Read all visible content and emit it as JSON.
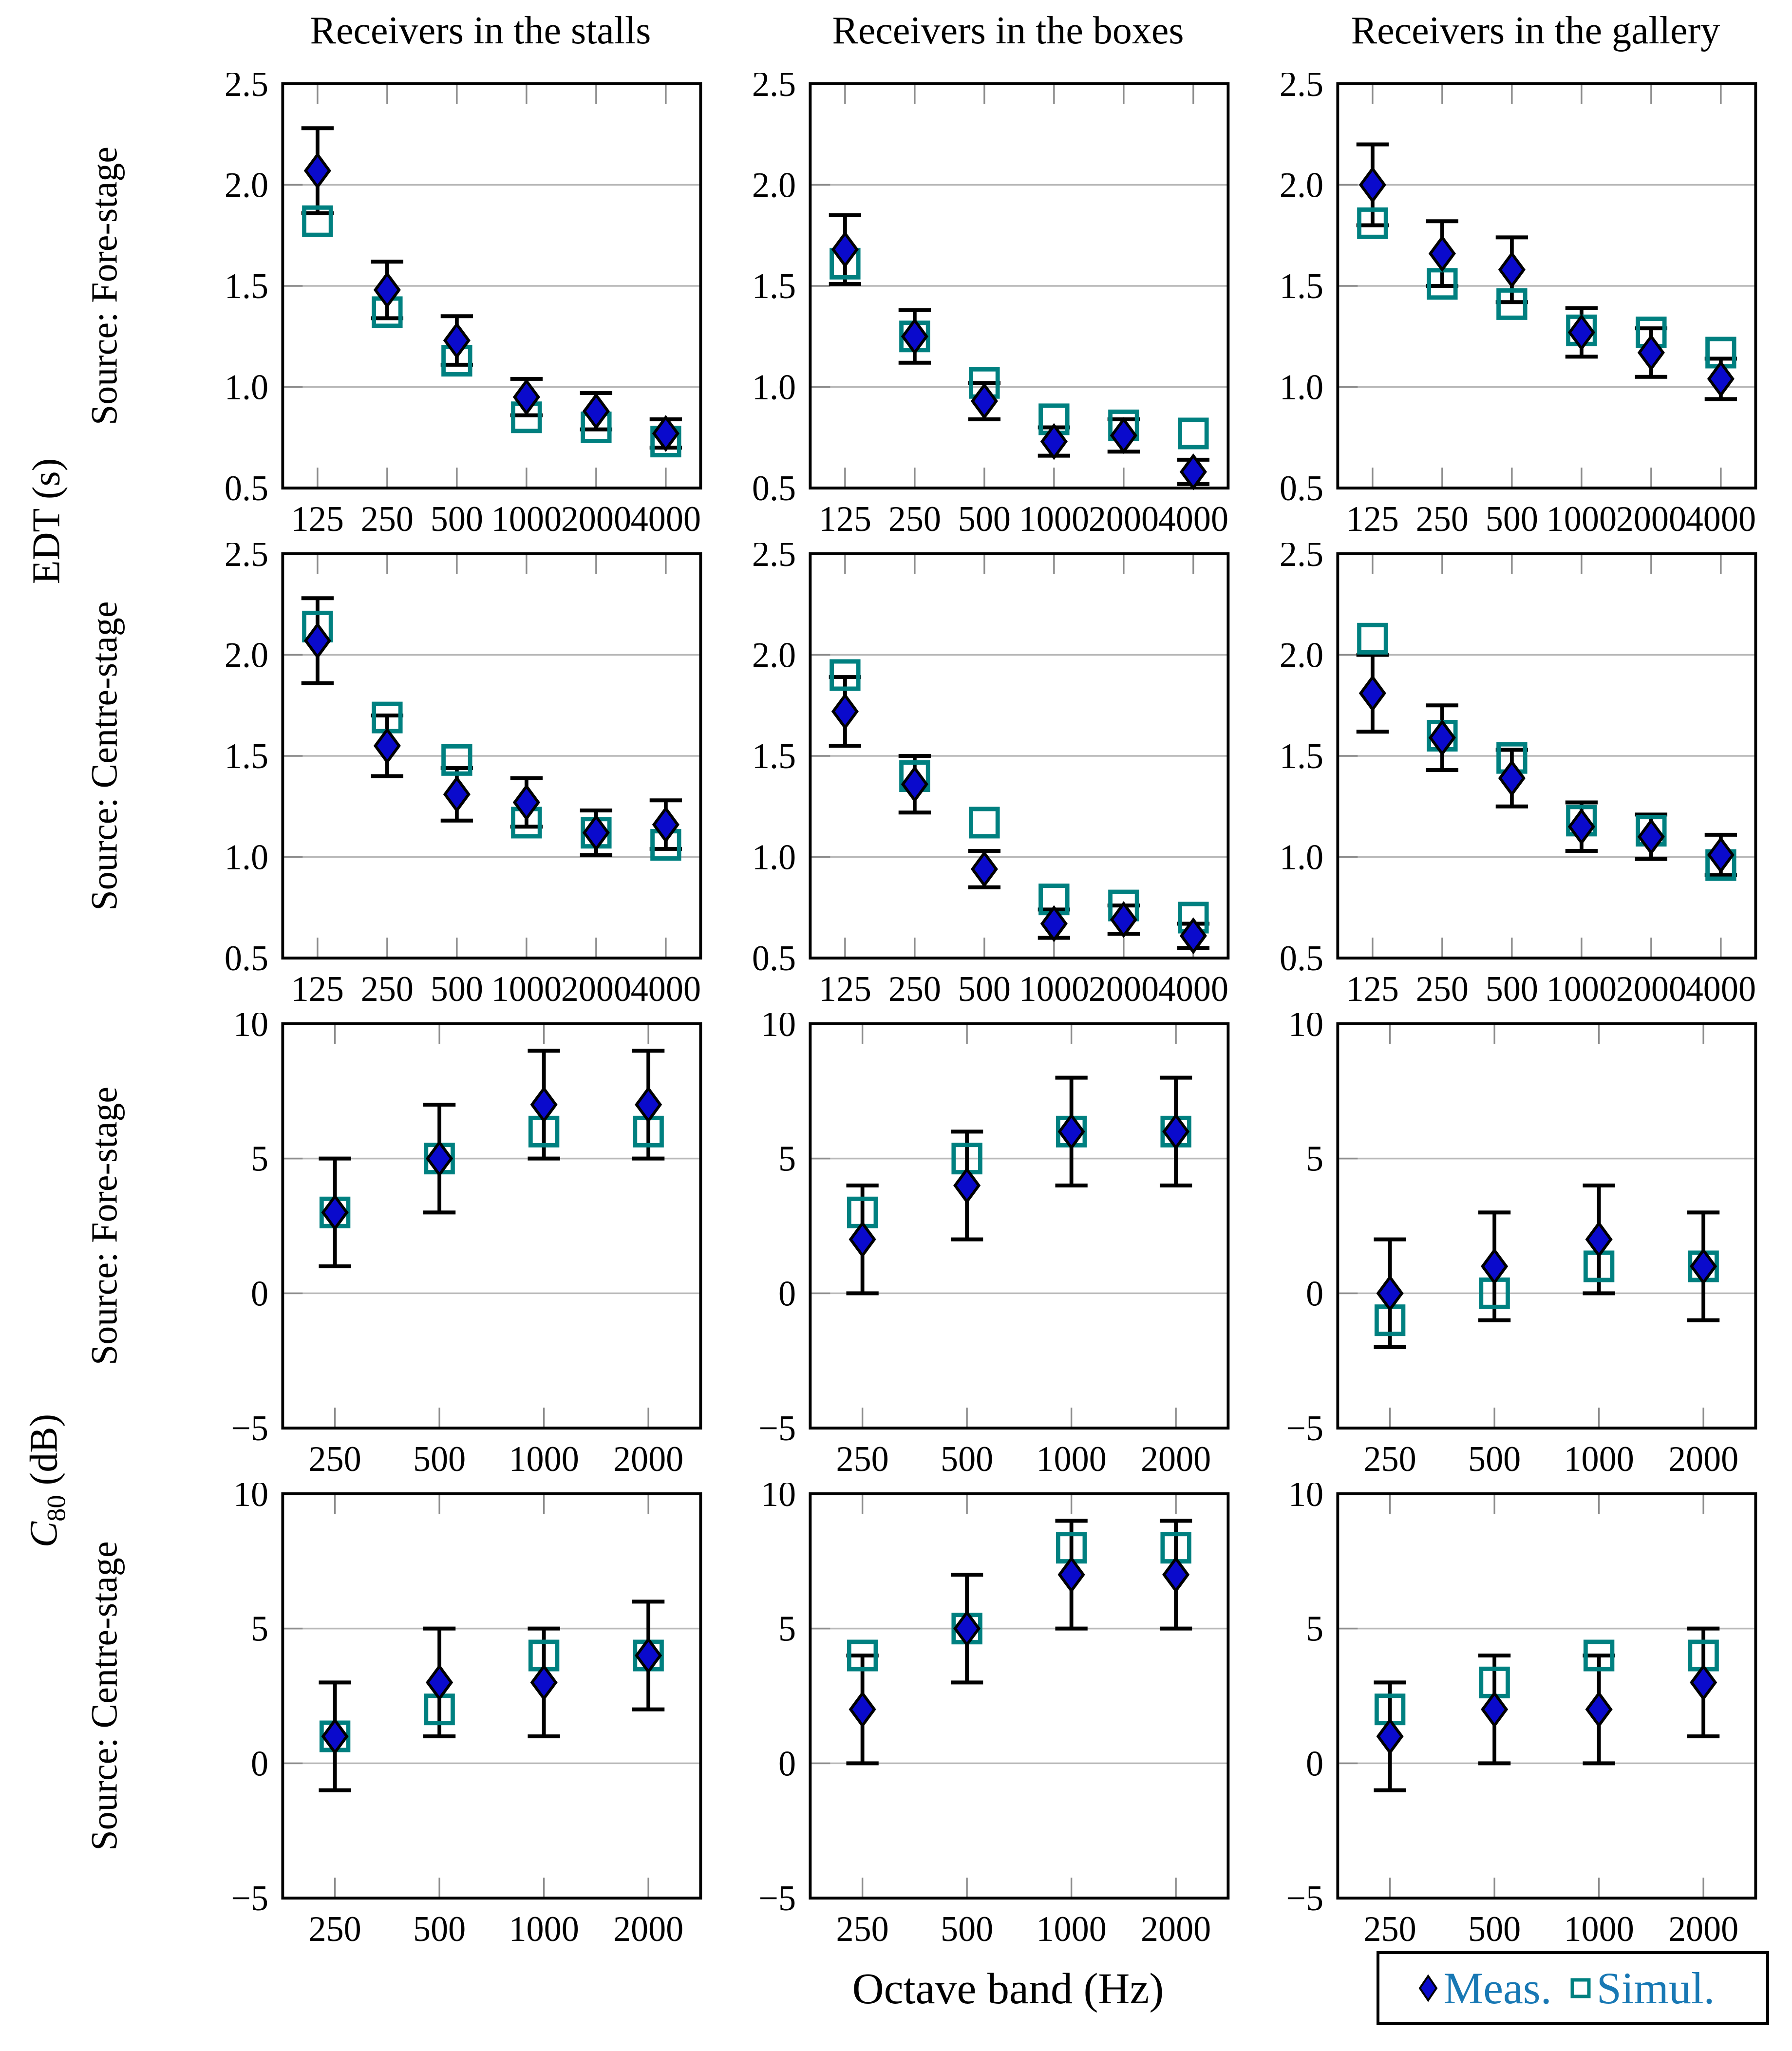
{
  "figure": {
    "column_titles": [
      "Receivers in the stalls",
      "Receivers in the boxes",
      "Receivers in the gallery"
    ],
    "row_labels": [
      "Source: Fore-stage",
      "Source: Centre-stage",
      "Source: Fore-stage",
      "Source: Centre-stage"
    ],
    "xlabel": "Octave band (Hz)",
    "ylabel_top": "EDT (s)",
    "ylabel_bottom": {
      "pre": "C",
      "sub": "80",
      "unit": " (dB)"
    },
    "legend": [
      {
        "label": "Meas.",
        "marker": "diamond-icon",
        "color": "#0a0acc"
      },
      {
        "label": "Simul.",
        "marker": "open-square-icon",
        "color": "#008080"
      }
    ],
    "colors": {
      "meas": "#0a0acc",
      "simul": "#008080",
      "grid": "#b8b8b8",
      "tick": "#8c8c8c",
      "axis": "#000000",
      "legend_text": "#1878b4"
    }
  },
  "chart_data": [
    {
      "type": "scatter",
      "metric": "EDT (s)",
      "row_label": "Source: Fore-stage",
      "col_title": "Receivers in the stalls",
      "x_categories": [
        "125",
        "250",
        "500",
        "1000",
        "2000",
        "4000"
      ],
      "ylim": [
        0.5,
        2.5
      ],
      "yticks": [
        0.5,
        1.0,
        1.5,
        2.0,
        2.5
      ],
      "ytick_labels": [
        "0.5",
        "1.0",
        "1.5",
        "2.0",
        "2.5"
      ],
      "gridlines": [
        1.0,
        1.5,
        2.0
      ],
      "series": [
        {
          "name": "Meas.",
          "values": [
            2.07,
            1.48,
            1.23,
            0.95,
            0.88,
            0.77
          ],
          "errors": [
            0.21,
            0.14,
            0.12,
            0.09,
            0.09,
            0.07
          ]
        },
        {
          "name": "Simul.",
          "values": [
            1.82,
            1.37,
            1.13,
            0.85,
            0.8,
            0.73
          ]
        }
      ]
    },
    {
      "type": "scatter",
      "metric": "EDT (s)",
      "row_label": "Source: Fore-stage",
      "col_title": "Receivers in the boxes",
      "x_categories": [
        "125",
        "250",
        "500",
        "1000",
        "2000",
        "4000"
      ],
      "ylim": [
        0.5,
        2.5
      ],
      "yticks": [
        0.5,
        1.0,
        1.5,
        2.0,
        2.5
      ],
      "ytick_labels": [
        "0.5",
        "1.0",
        "1.5",
        "2.0",
        "2.5"
      ],
      "gridlines": [
        1.0,
        1.5,
        2.0
      ],
      "series": [
        {
          "name": "Meas.",
          "values": [
            1.68,
            1.25,
            0.93,
            0.73,
            0.76,
            0.58
          ],
          "errors": [
            0.17,
            0.13,
            0.09,
            0.07,
            0.08,
            0.06
          ]
        },
        {
          "name": "Simul.",
          "values": [
            1.61,
            1.25,
            1.02,
            0.84,
            0.81,
            0.77
          ]
        }
      ]
    },
    {
      "type": "scatter",
      "metric": "EDT (s)",
      "row_label": "Source: Fore-stage",
      "col_title": "Receivers in the gallery",
      "x_categories": [
        "125",
        "250",
        "500",
        "1000",
        "2000",
        "4000"
      ],
      "ylim": [
        0.5,
        2.5
      ],
      "yticks": [
        0.5,
        1.0,
        1.5,
        2.0,
        2.5
      ],
      "ytick_labels": [
        "0.5",
        "1.0",
        "1.5",
        "2.0",
        "2.5"
      ],
      "gridlines": [
        1.0,
        1.5,
        2.0
      ],
      "series": [
        {
          "name": "Meas.",
          "values": [
            2.0,
            1.66,
            1.58,
            1.27,
            1.17,
            1.04
          ],
          "errors": [
            0.2,
            0.16,
            0.16,
            0.12,
            0.12,
            0.1
          ]
        },
        {
          "name": "Simul.",
          "values": [
            1.81,
            1.51,
            1.41,
            1.28,
            1.27,
            1.17
          ]
        }
      ]
    },
    {
      "type": "scatter",
      "metric": "EDT (s)",
      "row_label": "Source: Centre-stage",
      "col_title": "Receivers in the stalls",
      "x_categories": [
        "125",
        "250",
        "500",
        "1000",
        "2000",
        "4000"
      ],
      "ylim": [
        0.5,
        2.5
      ],
      "yticks": [
        0.5,
        1.0,
        1.5,
        2.0,
        2.5
      ],
      "ytick_labels": [
        "0.5",
        "1.0",
        "1.5",
        "2.0",
        "2.5"
      ],
      "gridlines": [
        1.0,
        1.5,
        2.0
      ],
      "series": [
        {
          "name": "Meas.",
          "values": [
            2.07,
            1.55,
            1.31,
            1.27,
            1.12,
            1.16
          ],
          "errors": [
            0.21,
            0.15,
            0.13,
            0.12,
            0.11,
            0.12
          ]
        },
        {
          "name": "Simul.",
          "values": [
            2.14,
            1.69,
            1.48,
            1.17,
            1.12,
            1.06
          ]
        }
      ]
    },
    {
      "type": "scatter",
      "metric": "EDT (s)",
      "row_label": "Source: Centre-stage",
      "col_title": "Receivers in the boxes",
      "x_categories": [
        "125",
        "250",
        "500",
        "1000",
        "2000",
        "4000"
      ],
      "ylim": [
        0.5,
        2.5
      ],
      "yticks": [
        0.5,
        1.0,
        1.5,
        2.0,
        2.5
      ],
      "ytick_labels": [
        "0.5",
        "1.0",
        "1.5",
        "2.0",
        "2.5"
      ],
      "gridlines": [
        1.0,
        1.5,
        2.0
      ],
      "series": [
        {
          "name": "Meas.",
          "values": [
            1.72,
            1.36,
            0.94,
            0.67,
            0.69,
            0.61
          ],
          "errors": [
            0.17,
            0.14,
            0.09,
            0.07,
            0.07,
            0.06
          ]
        },
        {
          "name": "Simul.",
          "values": [
            1.9,
            1.4,
            1.17,
            0.79,
            0.76,
            0.7
          ]
        }
      ]
    },
    {
      "type": "scatter",
      "metric": "EDT (s)",
      "row_label": "Source: Centre-stage",
      "col_title": "Receivers in the gallery",
      "x_categories": [
        "125",
        "250",
        "500",
        "1000",
        "2000",
        "4000"
      ],
      "ylim": [
        0.5,
        2.5
      ],
      "yticks": [
        0.5,
        1.0,
        1.5,
        2.0,
        2.5
      ],
      "ytick_labels": [
        "0.5",
        "1.0",
        "1.5",
        "2.0",
        "2.5"
      ],
      "gridlines": [
        1.0,
        1.5,
        2.0
      ],
      "series": [
        {
          "name": "Meas.",
          "values": [
            1.81,
            1.59,
            1.39,
            1.15,
            1.1,
            1.01
          ],
          "errors": [
            0.19,
            0.16,
            0.14,
            0.12,
            0.11,
            0.1
          ]
        },
        {
          "name": "Simul.",
          "values": [
            2.08,
            1.6,
            1.49,
            1.18,
            1.13,
            0.96
          ]
        }
      ]
    },
    {
      "type": "scatter",
      "metric": "C80 (dB)",
      "row_label": "Source: Fore-stage",
      "col_title": "Receivers in the stalls",
      "x_categories": [
        "250",
        "500",
        "1000",
        "2000"
      ],
      "ylim": [
        -5,
        10
      ],
      "yticks": [
        -5,
        0,
        5,
        10
      ],
      "ytick_labels": [
        "−5",
        "0",
        "5",
        "10"
      ],
      "gridlines": [
        0,
        5
      ],
      "series": [
        {
          "name": "Meas.",
          "values": [
            3,
            5,
            7,
            7
          ],
          "errors": [
            2,
            2,
            2,
            2
          ]
        },
        {
          "name": "Simul.",
          "values": [
            3,
            5,
            6,
            6
          ]
        }
      ]
    },
    {
      "type": "scatter",
      "metric": "C80 (dB)",
      "row_label": "Source: Fore-stage",
      "col_title": "Receivers in the boxes",
      "x_categories": [
        "250",
        "500",
        "1000",
        "2000"
      ],
      "ylim": [
        -5,
        10
      ],
      "yticks": [
        -5,
        0,
        5,
        10
      ],
      "ytick_labels": [
        "−5",
        "0",
        "5",
        "10"
      ],
      "gridlines": [
        0,
        5
      ],
      "series": [
        {
          "name": "Meas.",
          "values": [
            2,
            4,
            6,
            6
          ],
          "errors": [
            2,
            2,
            2,
            2
          ]
        },
        {
          "name": "Simul.",
          "values": [
            3,
            5,
            6,
            6
          ]
        }
      ]
    },
    {
      "type": "scatter",
      "metric": "C80 (dB)",
      "row_label": "Source: Fore-stage",
      "col_title": "Receivers in the gallery",
      "x_categories": [
        "250",
        "500",
        "1000",
        "2000"
      ],
      "ylim": [
        -5,
        10
      ],
      "yticks": [
        -5,
        0,
        5,
        10
      ],
      "ytick_labels": [
        "−5",
        "0",
        "5",
        "10"
      ],
      "gridlines": [
        0,
        5
      ],
      "series": [
        {
          "name": "Meas.",
          "values": [
            0,
            1,
            2,
            1
          ],
          "errors": [
            2,
            2,
            2,
            2
          ]
        },
        {
          "name": "Simul.",
          "values": [
            -1,
            0,
            1,
            1
          ]
        }
      ]
    },
    {
      "type": "scatter",
      "metric": "C80 (dB)",
      "row_label": "Source: Centre-stage",
      "col_title": "Receivers in the stalls",
      "x_categories": [
        "250",
        "500",
        "1000",
        "2000"
      ],
      "ylim": [
        -5,
        10
      ],
      "yticks": [
        -5,
        0,
        5,
        10
      ],
      "ytick_labels": [
        "−5",
        "0",
        "5",
        "10"
      ],
      "gridlines": [
        0,
        5
      ],
      "series": [
        {
          "name": "Meas.",
          "values": [
            1,
            3,
            3,
            4
          ],
          "errors": [
            2,
            2,
            2,
            2
          ]
        },
        {
          "name": "Simul.",
          "values": [
            1,
            2,
            4,
            4
          ]
        }
      ]
    },
    {
      "type": "scatter",
      "metric": "C80 (dB)",
      "row_label": "Source: Centre-stage",
      "col_title": "Receivers in the boxes",
      "x_categories": [
        "250",
        "500",
        "1000",
        "2000"
      ],
      "ylim": [
        -5,
        10
      ],
      "yticks": [
        -5,
        0,
        5,
        10
      ],
      "ytick_labels": [
        "−5",
        "0",
        "5",
        "10"
      ],
      "gridlines": [
        0,
        5
      ],
      "series": [
        {
          "name": "Meas.",
          "values": [
            2,
            5,
            7,
            7
          ],
          "errors": [
            2,
            2,
            2,
            2
          ]
        },
        {
          "name": "Simul.",
          "values": [
            4,
            5,
            8,
            8
          ]
        }
      ]
    },
    {
      "type": "scatter",
      "metric": "C80 (dB)",
      "row_label": "Source: Centre-stage",
      "col_title": "Receivers in the gallery",
      "x_categories": [
        "250",
        "500",
        "1000",
        "2000"
      ],
      "ylim": [
        -5,
        10
      ],
      "yticks": [
        -5,
        0,
        5,
        10
      ],
      "ytick_labels": [
        "−5",
        "0",
        "5",
        "10"
      ],
      "gridlines": [
        0,
        5
      ],
      "series": [
        {
          "name": "Meas.",
          "values": [
            1,
            2,
            2,
            3
          ],
          "errors": [
            2,
            2,
            2,
            2
          ]
        },
        {
          "name": "Simul.",
          "values": [
            2,
            3,
            4,
            4
          ]
        }
      ]
    }
  ]
}
